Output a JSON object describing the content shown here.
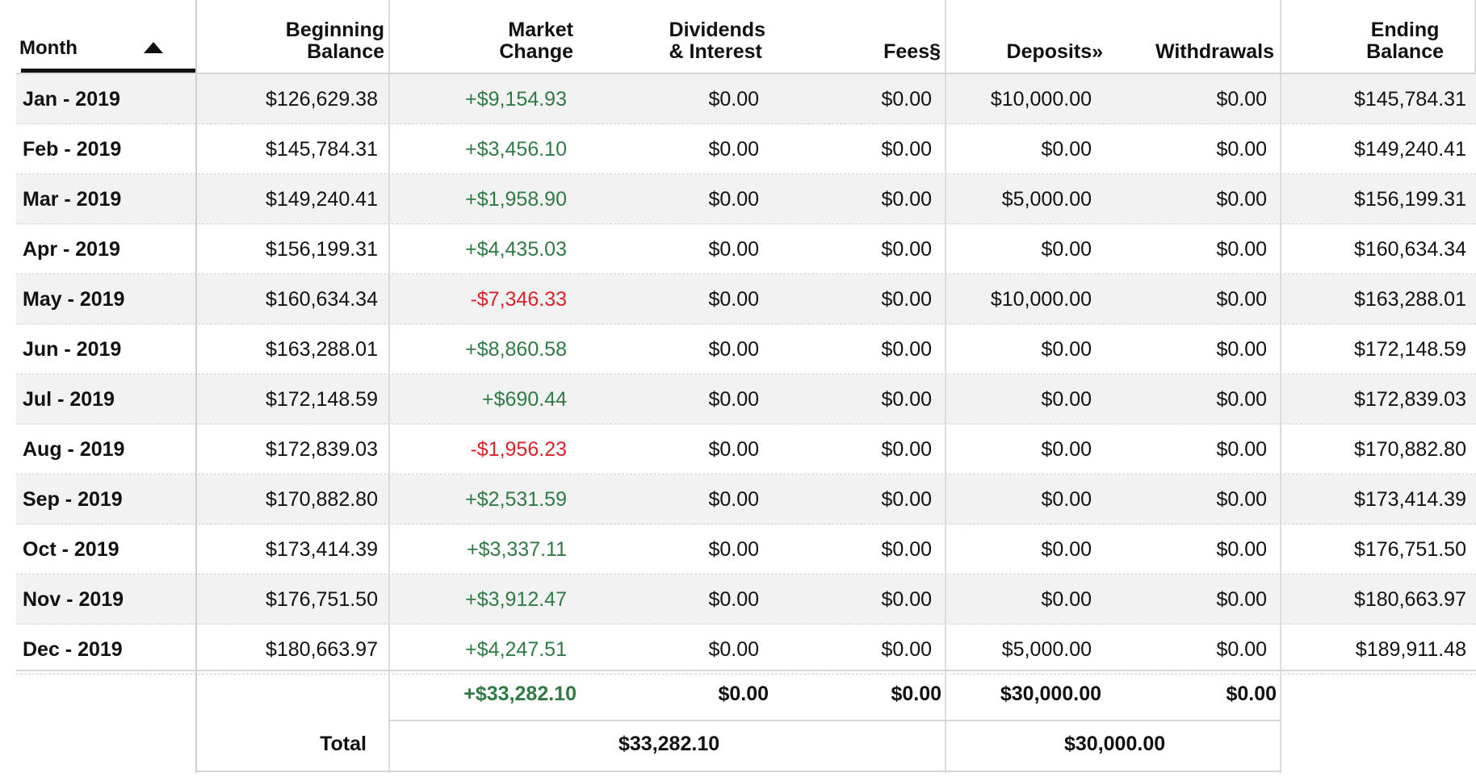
{
  "headers": {
    "month": "Month",
    "beginning_balance": [
      "Beginning",
      "Balance"
    ],
    "market_change": [
      "Market",
      "Change"
    ],
    "dividends_interest": [
      "Dividends",
      "& Interest"
    ],
    "fees": "Fees§",
    "deposits": "Deposits»",
    "withdrawals": "Withdrawals",
    "ending_balance": [
      "Ending",
      "Balance"
    ]
  },
  "sort_icon": "triangle-up-icon",
  "rows": [
    {
      "month": "Jan - 2019",
      "beginning": "$126,629.38",
      "market": "+$9,154.93",
      "market_sign": "pos",
      "dividends": "$0.00",
      "fees": "$0.00",
      "deposits": "$10,000.00",
      "withdrawals": "$0.00",
      "ending": "$145,784.31"
    },
    {
      "month": "Feb - 2019",
      "beginning": "$145,784.31",
      "market": "+$3,456.10",
      "market_sign": "pos",
      "dividends": "$0.00",
      "fees": "$0.00",
      "deposits": "$0.00",
      "withdrawals": "$0.00",
      "ending": "$149,240.41"
    },
    {
      "month": "Mar - 2019",
      "beginning": "$149,240.41",
      "market": "+$1,958.90",
      "market_sign": "pos",
      "dividends": "$0.00",
      "fees": "$0.00",
      "deposits": "$5,000.00",
      "withdrawals": "$0.00",
      "ending": "$156,199.31"
    },
    {
      "month": "Apr - 2019",
      "beginning": "$156,199.31",
      "market": "+$4,435.03",
      "market_sign": "pos",
      "dividends": "$0.00",
      "fees": "$0.00",
      "deposits": "$0.00",
      "withdrawals": "$0.00",
      "ending": "$160,634.34"
    },
    {
      "month": "May - 2019",
      "beginning": "$160,634.34",
      "market": "-$7,346.33",
      "market_sign": "neg",
      "dividends": "$0.00",
      "fees": "$0.00",
      "deposits": "$10,000.00",
      "withdrawals": "$0.00",
      "ending": "$163,288.01"
    },
    {
      "month": "Jun - 2019",
      "beginning": "$163,288.01",
      "market": "+$8,860.58",
      "market_sign": "pos",
      "dividends": "$0.00",
      "fees": "$0.00",
      "deposits": "$0.00",
      "withdrawals": "$0.00",
      "ending": "$172,148.59"
    },
    {
      "month": "Jul - 2019",
      "beginning": "$172,148.59",
      "market": "+$690.44",
      "market_sign": "pos",
      "dividends": "$0.00",
      "fees": "$0.00",
      "deposits": "$0.00",
      "withdrawals": "$0.00",
      "ending": "$172,839.03"
    },
    {
      "month": "Aug - 2019",
      "beginning": "$172,839.03",
      "market": "-$1,956.23",
      "market_sign": "neg",
      "dividends": "$0.00",
      "fees": "$0.00",
      "deposits": "$0.00",
      "withdrawals": "$0.00",
      "ending": "$170,882.80"
    },
    {
      "month": "Sep - 2019",
      "beginning": "$170,882.80",
      "market": "+$2,531.59",
      "market_sign": "pos",
      "dividends": "$0.00",
      "fees": "$0.00",
      "deposits": "$0.00",
      "withdrawals": "$0.00",
      "ending": "$173,414.39"
    },
    {
      "month": "Oct - 2019",
      "beginning": "$173,414.39",
      "market": "+$3,337.11",
      "market_sign": "pos",
      "dividends": "$0.00",
      "fees": "$0.00",
      "deposits": "$0.00",
      "withdrawals": "$0.00",
      "ending": "$176,751.50"
    },
    {
      "month": "Nov - 2019",
      "beginning": "$176,751.50",
      "market": "+$3,912.47",
      "market_sign": "pos",
      "dividends": "$0.00",
      "fees": "$0.00",
      "deposits": "$0.00",
      "withdrawals": "$0.00",
      "ending": "$180,663.97"
    },
    {
      "month": "Dec - 2019",
      "beginning": "$180,663.97",
      "market": "+$4,247.51",
      "market_sign": "pos",
      "dividends": "$0.00",
      "fees": "$0.00",
      "deposits": "$5,000.00",
      "withdrawals": "$0.00",
      "ending": "$189,911.48"
    }
  ],
  "subtotals": {
    "market": "+$33,282.10",
    "dividends": "$0.00",
    "fees": "$0.00",
    "deposits": "$30,000.00",
    "withdrawals": "$0.00"
  },
  "totals": {
    "label": "Total",
    "investment_change": "$33,282.10",
    "net_deposits": "$30,000.00"
  },
  "colors": {
    "positive": "#2f7a45",
    "negative": "#d8232a",
    "row_alt": "#f2f2f2"
  }
}
